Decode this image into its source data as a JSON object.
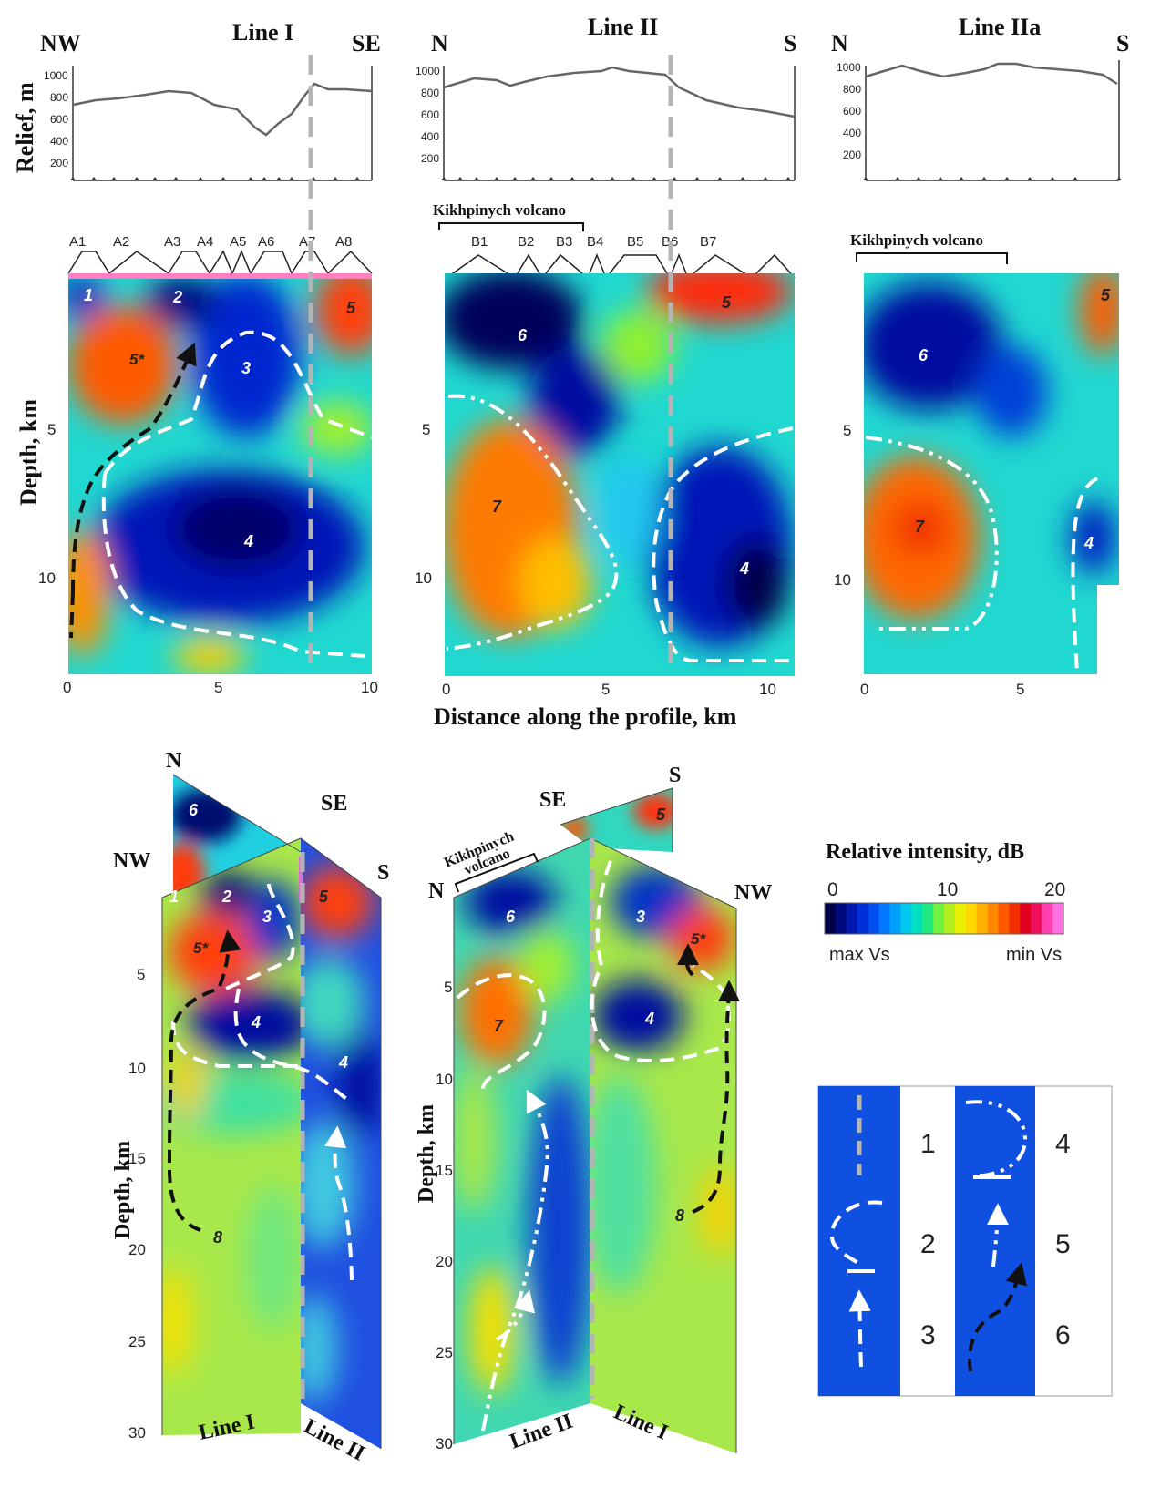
{
  "top_panels": [
    {
      "id": "line1",
      "title": "Line I",
      "left": "NW",
      "right": "SE",
      "relief_ticks": [
        "1000",
        "800",
        "600",
        "400",
        "200"
      ],
      "segments": [
        "A1",
        "A2",
        "A3",
        "A4",
        "A5",
        "A6",
        "A7",
        "A8"
      ],
      "depth_ticks": [
        "5",
        "10"
      ],
      "x_ticks": [
        "0",
        "5",
        "10"
      ],
      "anomalies": [
        "1",
        "2",
        "3",
        "4",
        "5",
        "5*"
      ]
    },
    {
      "id": "line2",
      "title": "Line II",
      "left": "N",
      "right": "S",
      "relief_ticks": [
        "1000",
        "800",
        "600",
        "400",
        "200"
      ],
      "volcano_label": "Kikhpinych volcano",
      "segments": [
        "B1",
        "B2",
        "B3",
        "B4",
        "B5",
        "B6",
        "B7"
      ],
      "depth_ticks": [
        "5",
        "10"
      ],
      "x_ticks": [
        "0",
        "5",
        "10"
      ],
      "anomalies": [
        "5",
        "6",
        "7",
        "4"
      ]
    },
    {
      "id": "line2a",
      "title": "Line IIa",
      "left": "N",
      "right": "S",
      "relief_ticks": [
        "1000",
        "800",
        "600",
        "400",
        "200"
      ],
      "volcano_label": "Kikhpinych volcano",
      "depth_ticks": [
        "5",
        "10"
      ],
      "x_ticks": [
        "0",
        "5"
      ],
      "anomalies": [
        "5",
        "6",
        "7",
        "4"
      ]
    }
  ],
  "axes": {
    "relief_label": "Relief, m",
    "depth_label": "Depth, km",
    "distance_label": "Distance along the profile, km"
  },
  "block1": {
    "labels": {
      "n": "N",
      "se": "SE",
      "nw": "NW",
      "s": "S"
    },
    "depth_ticks": [
      "5",
      "10",
      "15",
      "20",
      "25",
      "30"
    ],
    "bottom_labels": [
      "Line I",
      "Line II"
    ],
    "anomalies": [
      "6",
      "1",
      "2",
      "3",
      "5",
      "5*",
      "4",
      "4",
      "8"
    ]
  },
  "block2": {
    "labels": {
      "se": "SE",
      "s": "S",
      "n": "N",
      "nw": "NW"
    },
    "volcano_label": [
      "Kikhpinych",
      "volcano"
    ],
    "depth_ticks": [
      "5",
      "10",
      "15",
      "20",
      "25",
      "30"
    ],
    "bottom_labels": [
      "Line II",
      "Line I"
    ],
    "anomalies": [
      "5",
      "6",
      "3",
      "5*",
      "7",
      "4",
      "8"
    ]
  },
  "colorbar": {
    "title": "Relative intensity, dB",
    "ticks": [
      "0",
      "10",
      "20"
    ],
    "left_label": "max Vs",
    "right_label": "min Vs",
    "colors": [
      "#00004a",
      "#000a80",
      "#0018b0",
      "#0030d8",
      "#0050f0",
      "#0078ff",
      "#00a0ff",
      "#00c8ee",
      "#00e0c0",
      "#20e880",
      "#70f040",
      "#b0f020",
      "#e8f000",
      "#ffd800",
      "#ffb000",
      "#ff8800",
      "#ff5a00",
      "#f03000",
      "#e00020",
      "#f01060",
      "#ff40b0",
      "#ff70e0"
    ]
  },
  "legend": {
    "items": [
      "1",
      "2",
      "3",
      "4",
      "5",
      "6"
    ]
  }
}
